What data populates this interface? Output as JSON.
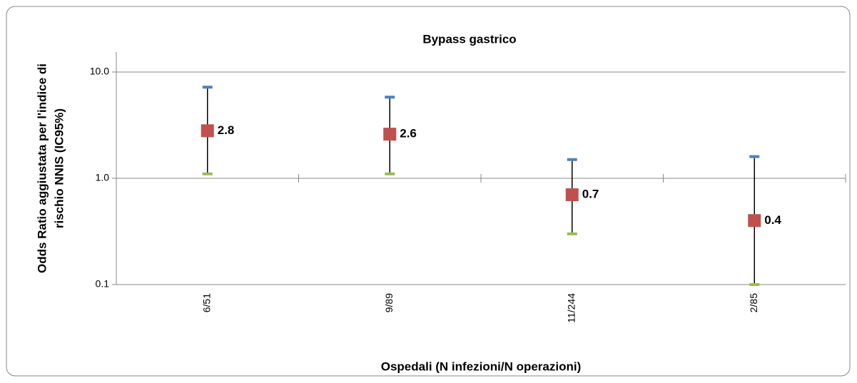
{
  "chart_data": {
    "type": "errorbar",
    "title": "Bypass gastrico",
    "xlabel": "Ospedali (N infezioni/N operazioni)",
    "ylabel": [
      "Odds Ratio aggiustata per l'indice di",
      "rischio NNIS (IC95%)"
    ],
    "categories": [
      "6/51",
      "9/89",
      "11/244",
      "2/85"
    ],
    "values": [
      2.8,
      2.6,
      0.7,
      0.4
    ],
    "upper": [
      7.2,
      5.8,
      1.5,
      1.6
    ],
    "lower": [
      1.1,
      1.1,
      0.3,
      0.1
    ],
    "color": "#c0504d",
    "upper_color": "#4f81bd",
    "lower_color": "#9bbb59",
    "line_color": "#000000",
    "log_scale": true,
    "ylim": [
      0.1,
      15.4
    ],
    "yticks": [
      0.1,
      {
        "value": 1,
        "label": "1.0"
      },
      {
        "value": 10,
        "label": "10.0"
      }
    ],
    "grid": true
  }
}
